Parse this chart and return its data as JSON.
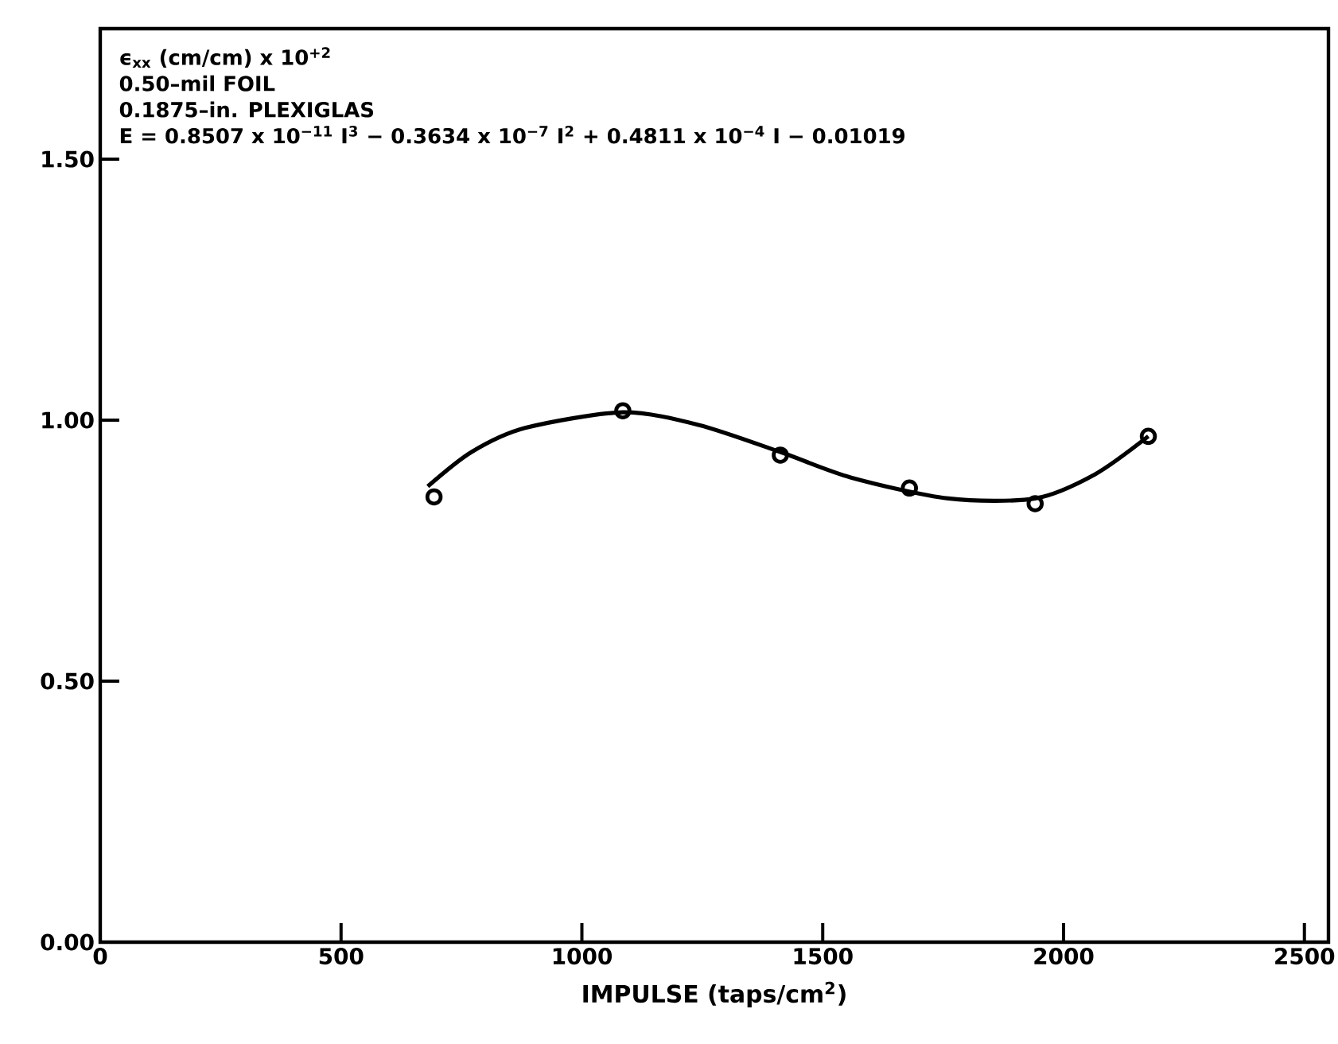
{
  "chart_data": {
    "type": "scatter",
    "annotations": [
      "ϵ$_{xx}$ (cm/cm) x 10$^{+2}$",
      "0.50–mil FOIL",
      "0.1875–in. PLEXIGLAS",
      "E = 0.8507 x 10$^{−11}$ I$^{3}$ − 0.3634 x 10$^{−7}$ I$^{2}$ + 0.4811 x 10$^{−4}$ I − 0.01019"
    ],
    "xlabel": "IMPULSE (taps/cm$^{2}$)",
    "xlim": [
      0,
      2550
    ],
    "ylim": [
      0,
      1.75
    ],
    "xticks": [
      0,
      500,
      1000,
      1500,
      2000,
      2500
    ],
    "yticks": [
      {
        "value": 0,
        "label": "0.00"
      },
      {
        "value": 0.5,
        "label": "0.50"
      },
      {
        "value": 1,
        "label": "1.00"
      },
      {
        "value": 1.5,
        "label": "1.50"
      }
    ],
    "series": [
      {
        "type": "line",
        "color": "#000000",
        "x": [
          680,
          771,
          882,
          1085,
          1242,
          1412,
          1559,
          1761,
          1941,
          2065,
          2176
        ],
        "values": [
          0.873,
          0.939,
          0.985,
          1.015,
          0.991,
          0.939,
          0.89,
          0.85,
          0.85,
          0.896,
          0.969
        ]
      },
      {
        "color": "#000000",
        "marker": "circle",
        "x": [
          693,
          1085,
          1412,
          1680,
          1941,
          2176
        ],
        "values": [
          0.853,
          1.018,
          0.933,
          0.87,
          0.84,
          0.969
        ]
      }
    ]
  }
}
